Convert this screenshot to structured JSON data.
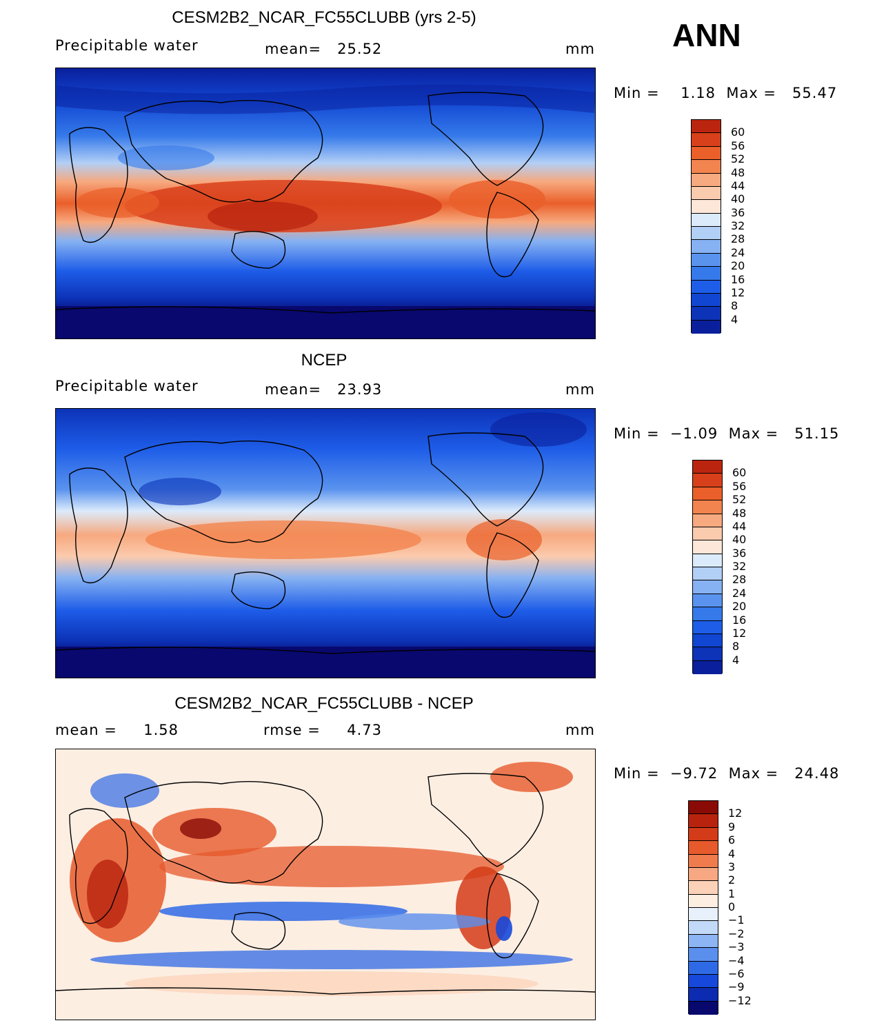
{
  "season": "ANN",
  "colors": {
    "abs_scale": [
      "#08086e",
      "#0a1f9c",
      "#0c33b8",
      "#1146d2",
      "#1e5de8",
      "#3579ea",
      "#5a93ee",
      "#86b1f2",
      "#b2cff6",
      "#dcebfb",
      "#fde7d9",
      "#fbcbae",
      "#f7a97f",
      "#f2844f",
      "#ea5f2a",
      "#d8401b",
      "#bb2510",
      "#8a0b06"
    ],
    "diff_scale": [
      "#08086e",
      "#0c2bb0",
      "#1649db",
      "#2f6ae6",
      "#5b8fee",
      "#8db4f3",
      "#c2d9f8",
      "#e8f0fc",
      "#fdeee2",
      "#fbd2b8",
      "#f7a882",
      "#f07c4e",
      "#e65a2c",
      "#d43b18",
      "#b8230e",
      "#8a0b06"
    ]
  },
  "panels": [
    {
      "title": "CESM2B2_NCAR_FC55CLUBB (yrs 2-5)",
      "left_label": "Precipitable water",
      "center_label": "mean=   25.52",
      "units": "mm",
      "range_text": "Min =    1.18  Max =   55.47",
      "colorbar_labels": [
        "60",
        "56",
        "52",
        "48",
        "44",
        "40",
        "36",
        "32",
        "28",
        "24",
        "20",
        "16",
        "12",
        "8",
        "4"
      ]
    },
    {
      "title": "NCEP",
      "left_label": "Precipitable water",
      "center_label": "mean=   23.93",
      "units": "mm",
      "range_text": "Min =  −1.09  Max =   51.15",
      "colorbar_labels": [
        "60",
        "56",
        "52",
        "48",
        "44",
        "40",
        "36",
        "32",
        "28",
        "24",
        "20",
        "16",
        "12",
        "8",
        "4"
      ]
    },
    {
      "title": "CESM2B2_NCAR_FC55CLUBB - NCEP",
      "left_label": "mean =     1.58",
      "center_label": "rmse =     4.73",
      "units": "mm",
      "range_text": "Min =  −9.72  Max =   24.48",
      "colorbar_labels": [
        "12",
        "9",
        "6",
        "4",
        "3",
        "2",
        "1",
        "0",
        "−1",
        "−2",
        "−3",
        "−4",
        "−6",
        "−9",
        "−12"
      ]
    }
  ]
}
